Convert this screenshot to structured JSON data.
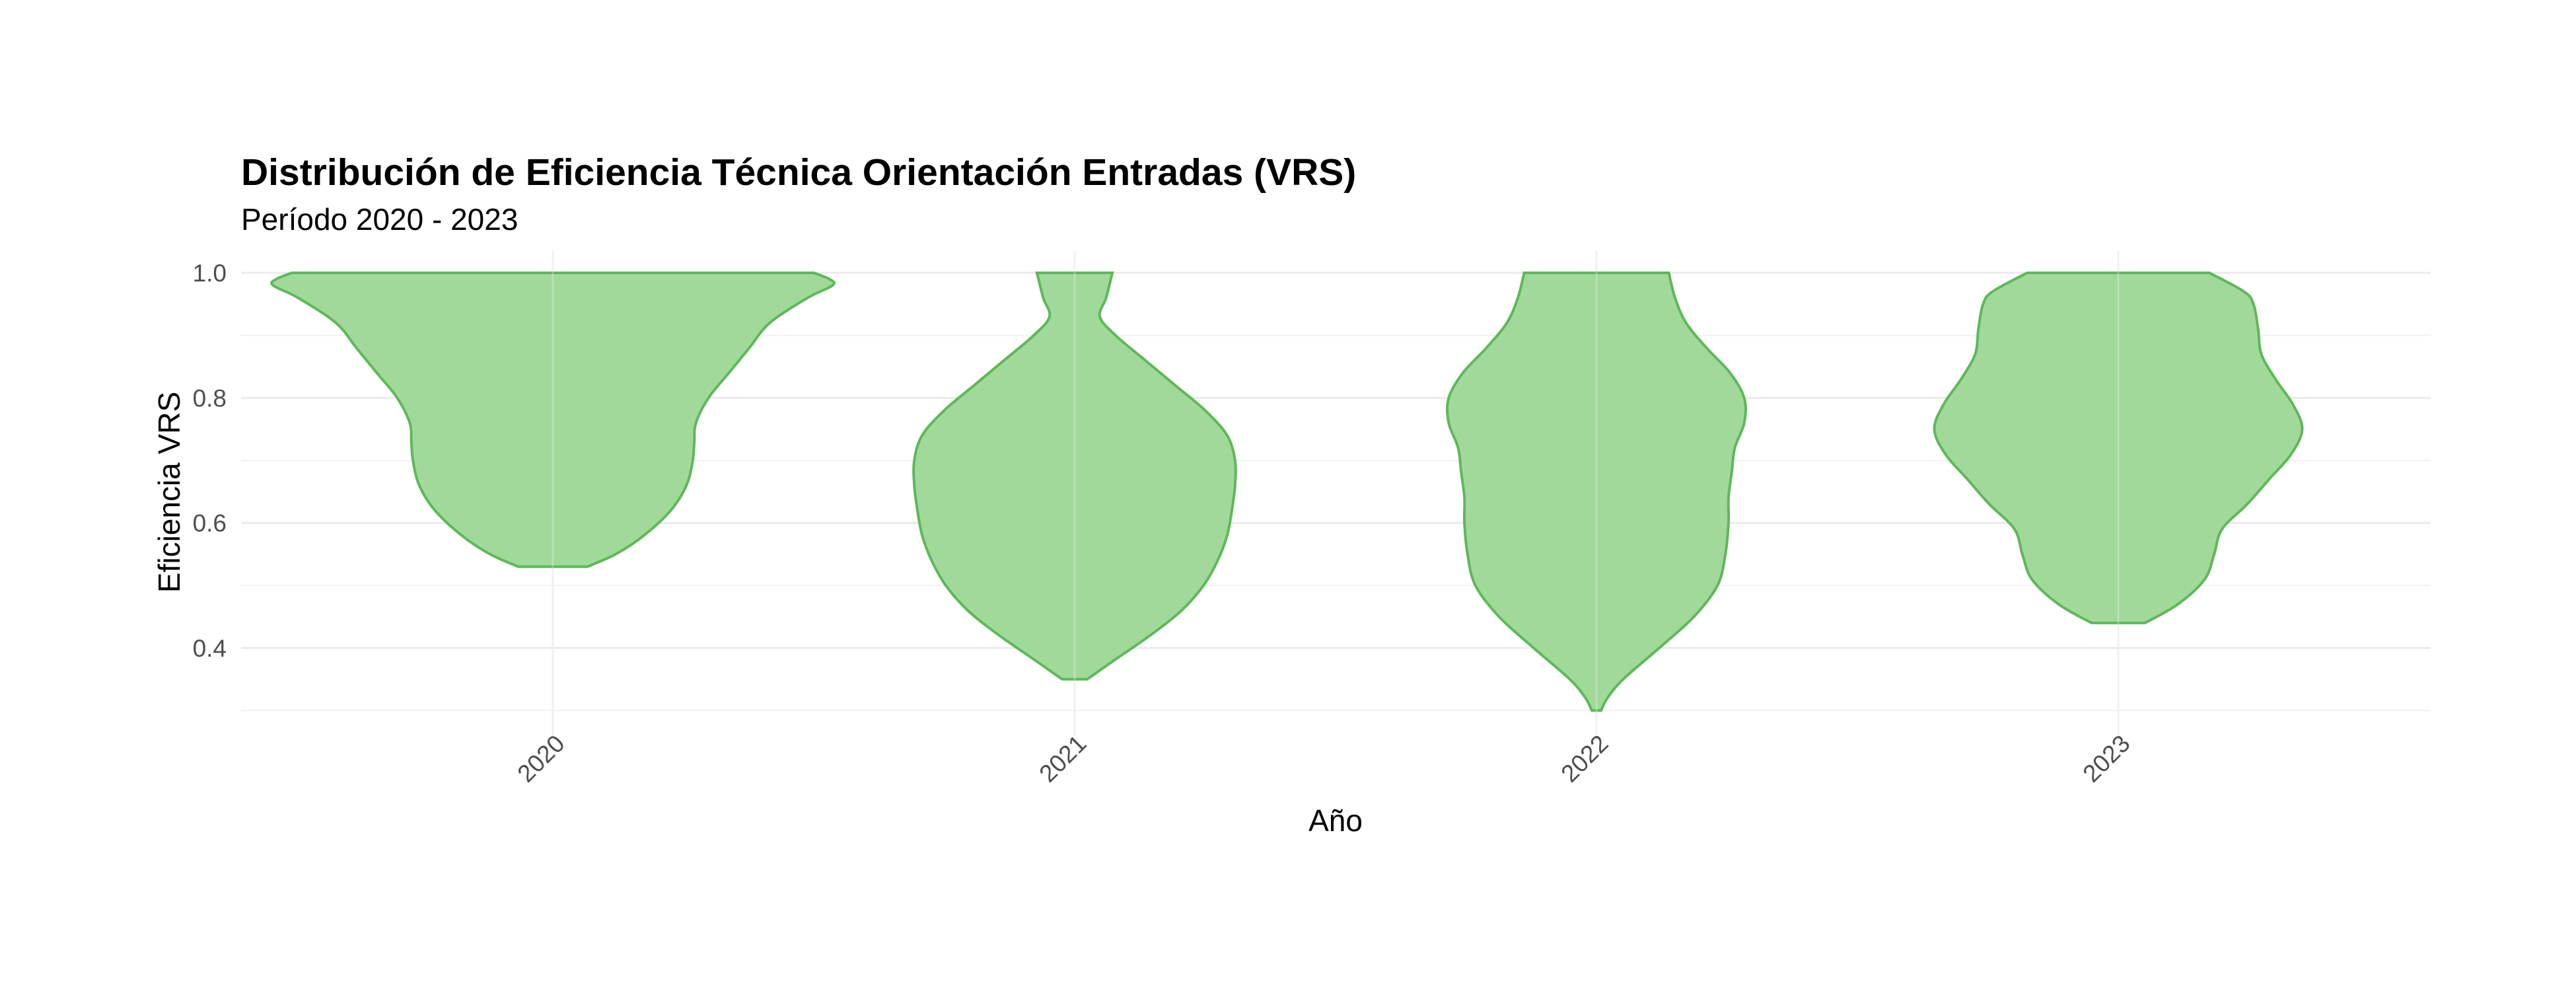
{
  "chart_data": {
    "type": "violin",
    "title": "Distribución de Eficiencia Técnica Orientación Entradas (VRS)",
    "subtitle": "Período 2020 - 2023",
    "xlabel": "Año",
    "ylabel": "Eficiencia VRS",
    "categories": [
      "2020",
      "2021",
      "2022",
      "2023"
    ],
    "y_ticks": [
      "0.4",
      "0.6",
      "0.8",
      "1.0"
    ],
    "y_tick_values": [
      0.4,
      0.6,
      0.8,
      1.0
    ],
    "ylim": [
      0.26,
      1.035
    ],
    "grid": true,
    "legend": "none",
    "fill_color": "#a1d99b",
    "stroke_color": "#5fb85a",
    "series": [
      {
        "category": "2020",
        "min": 0.53,
        "max": 1.0,
        "profile": [
          [
            0.53,
            0.22
          ],
          [
            0.55,
            0.4
          ],
          [
            0.58,
            0.58
          ],
          [
            0.62,
            0.75
          ],
          [
            0.66,
            0.85
          ],
          [
            0.7,
            0.89
          ],
          [
            0.73,
            0.9
          ],
          [
            0.76,
            0.91
          ],
          [
            0.8,
            0.99
          ],
          [
            0.84,
            1.12
          ],
          [
            0.88,
            1.25
          ],
          [
            0.92,
            1.38
          ],
          [
            0.96,
            1.62
          ],
          [
            0.98,
            1.78
          ],
          [
            0.99,
            1.76
          ],
          [
            1.0,
            1.66
          ]
        ]
      },
      {
        "category": "2021",
        "min": 0.35,
        "max": 1.0,
        "profile": [
          [
            0.35,
            0.08
          ],
          [
            0.38,
            0.25
          ],
          [
            0.42,
            0.48
          ],
          [
            0.46,
            0.68
          ],
          [
            0.5,
            0.82
          ],
          [
            0.54,
            0.91
          ],
          [
            0.58,
            0.97
          ],
          [
            0.62,
            1.0
          ],
          [
            0.66,
            1.02
          ],
          [
            0.7,
            1.02
          ],
          [
            0.74,
            0.97
          ],
          [
            0.78,
            0.83
          ],
          [
            0.82,
            0.64
          ],
          [
            0.86,
            0.45
          ],
          [
            0.9,
            0.26
          ],
          [
            0.93,
            0.16
          ],
          [
            0.96,
            0.2
          ],
          [
            1.0,
            0.24
          ]
        ]
      },
      {
        "category": "2022",
        "min": 0.3,
        "max": 1.0,
        "profile": [
          [
            0.3,
            0.03
          ],
          [
            0.32,
            0.07
          ],
          [
            0.35,
            0.17
          ],
          [
            0.4,
            0.4
          ],
          [
            0.45,
            0.62
          ],
          [
            0.5,
            0.77
          ],
          [
            0.55,
            0.82
          ],
          [
            0.6,
            0.84
          ],
          [
            0.64,
            0.84
          ],
          [
            0.68,
            0.86
          ],
          [
            0.72,
            0.88
          ],
          [
            0.76,
            0.94
          ],
          [
            0.8,
            0.94
          ],
          [
            0.84,
            0.85
          ],
          [
            0.88,
            0.7
          ],
          [
            0.92,
            0.57
          ],
          [
            0.96,
            0.5
          ],
          [
            1.0,
            0.46
          ]
        ]
      },
      {
        "category": "2023",
        "min": 0.44,
        "max": 1.0,
        "profile": [
          [
            0.44,
            0.17
          ],
          [
            0.47,
            0.38
          ],
          [
            0.51,
            0.55
          ],
          [
            0.55,
            0.61
          ],
          [
            0.59,
            0.66
          ],
          [
            0.63,
            0.82
          ],
          [
            0.67,
            0.96
          ],
          [
            0.71,
            1.1
          ],
          [
            0.75,
            1.17
          ],
          [
            0.79,
            1.11
          ],
          [
            0.83,
            1.0
          ],
          [
            0.87,
            0.91
          ],
          [
            0.91,
            0.89
          ],
          [
            0.95,
            0.86
          ],
          [
            0.97,
            0.8
          ],
          [
            1.0,
            0.58
          ]
        ]
      }
    ]
  }
}
